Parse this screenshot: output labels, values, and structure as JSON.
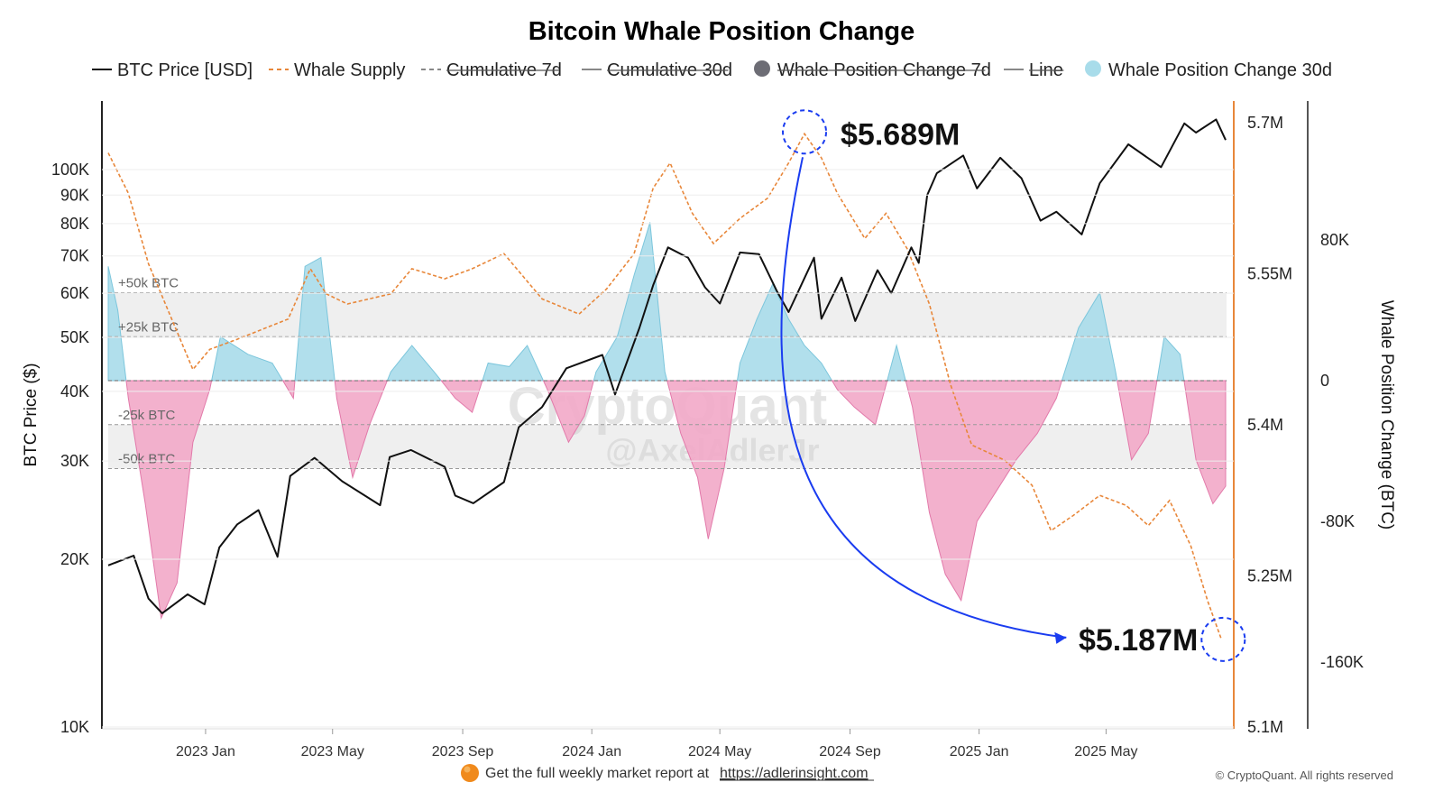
{
  "chart_data": {
    "type": "line",
    "title": "Bitcoin Whale Position Change",
    "legend": [
      {
        "name": "BTC Price [USD]",
        "style": "line",
        "color": "#111111",
        "active": true
      },
      {
        "name": "Whale Supply",
        "style": "dash",
        "color": "#e8873a",
        "active": true
      },
      {
        "name": "Cumulative 7d",
        "style": "dash",
        "color": "#888888",
        "active": false
      },
      {
        "name": "Cumulative 30d",
        "style": "line",
        "color": "#888888",
        "active": false
      },
      {
        "name": "Whale Position Change 7d",
        "style": "dot",
        "color": "#6d6d75",
        "active": false
      },
      {
        "name": "Line",
        "style": "line",
        "color": "#888888",
        "active": false
      },
      {
        "name": "Whale Position Change 30d",
        "style": "dot",
        "color": "#a8dcea",
        "active": true
      }
    ],
    "x_ticks": [
      "2023 Jan",
      "2023 May",
      "2023 Sep",
      "2024 Jan",
      "2024 May",
      "2024 Sep",
      "2025 Jan",
      "2025 May"
    ],
    "y_left": {
      "label": "BTC Price ($)",
      "scale": "log",
      "ticks": [
        "100K",
        "90K",
        "80K",
        "70K",
        "60K",
        "50K",
        "40K",
        "30K",
        "20K",
        "10K"
      ],
      "tick_values": [
        100000,
        90000,
        80000,
        70000,
        60000,
        50000,
        40000,
        30000,
        20000,
        10000
      ]
    },
    "y_right_outer": {
      "label": "Whale Position Change (BTC)",
      "ticks": [
        "80K",
        "0",
        "-80K",
        "-160K"
      ],
      "tick_values": [
        80000,
        0,
        -80000,
        -160000
      ]
    },
    "y_right_inner": {
      "ticks": [
        "5.7M",
        "5.55M",
        "5.4M",
        "5.25M",
        "5.1M"
      ],
      "tick_values": [
        5700000,
        5550000,
        5400000,
        5250000,
        5100000
      ]
    },
    "bands": [
      {
        "label": "+50k BTC",
        "value": 50000
      },
      {
        "label": "+25k BTC",
        "value": 25000
      },
      {
        "label": "-25k BTC",
        "value": -25000
      },
      {
        "label": "-50k BTC",
        "value": -50000
      }
    ],
    "annotations": [
      {
        "text": "$5.689M",
        "date": "2024-07-20",
        "value": 5689000
      },
      {
        "text": "$5.187M",
        "date": "2025-08-18",
        "value": 5187000
      }
    ],
    "series": [
      {
        "name": "BTC Price [USD]",
        "axis": "left",
        "points": [
          [
            "2022-10-01",
            19500
          ],
          [
            "2022-10-25",
            20300
          ],
          [
            "2022-11-08",
            17000
          ],
          [
            "2022-11-21",
            16000
          ],
          [
            "2022-12-15",
            17300
          ],
          [
            "2022-12-31",
            16600
          ],
          [
            "2023-01-14",
            21000
          ],
          [
            "2023-01-31",
            23100
          ],
          [
            "2023-02-20",
            24500
          ],
          [
            "2023-03-10",
            20200
          ],
          [
            "2023-03-22",
            28200
          ],
          [
            "2023-04-14",
            30400
          ],
          [
            "2023-05-10",
            27600
          ],
          [
            "2023-06-15",
            25000
          ],
          [
            "2023-06-24",
            30500
          ],
          [
            "2023-07-14",
            31400
          ],
          [
            "2023-08-15",
            29300
          ],
          [
            "2023-08-25",
            26000
          ],
          [
            "2023-09-11",
            25200
          ],
          [
            "2023-10-10",
            27500
          ],
          [
            "2023-10-24",
            34500
          ],
          [
            "2023-11-15",
            37500
          ],
          [
            "2023-12-08",
            44000
          ],
          [
            "2024-01-11",
            46500
          ],
          [
            "2024-01-23",
            39500
          ],
          [
            "2024-02-15",
            52000
          ],
          [
            "2024-02-28",
            62000
          ],
          [
            "2024-03-13",
            72500
          ],
          [
            "2024-04-01",
            69500
          ],
          [
            "2024-04-17",
            61500
          ],
          [
            "2024-05-01",
            57500
          ],
          [
            "2024-05-20",
            71000
          ],
          [
            "2024-06-07",
            70500
          ],
          [
            "2024-06-24",
            60500
          ],
          [
            "2024-07-05",
            55500
          ],
          [
            "2024-07-29",
            69500
          ],
          [
            "2024-08-05",
            54000
          ],
          [
            "2024-08-24",
            64000
          ],
          [
            "2024-09-06",
            53500
          ],
          [
            "2024-09-27",
            66000
          ],
          [
            "2024-10-10",
            60000
          ],
          [
            "2024-10-29",
            72500
          ],
          [
            "2024-11-05",
            68000
          ],
          [
            "2024-11-13",
            90000
          ],
          [
            "2024-11-22",
            98500
          ],
          [
            "2024-12-17",
            106000
          ],
          [
            "2024-12-30",
            92500
          ],
          [
            "2025-01-21",
            105000
          ],
          [
            "2025-02-10",
            96500
          ],
          [
            "2025-02-28",
            81000
          ],
          [
            "2025-03-15",
            84000
          ],
          [
            "2025-04-08",
            76500
          ],
          [
            "2025-04-25",
            94500
          ],
          [
            "2025-05-22",
            111000
          ],
          [
            "2025-06-22",
            101000
          ],
          [
            "2025-07-14",
            121000
          ],
          [
            "2025-07-25",
            116500
          ],
          [
            "2025-08-13",
            123000
          ],
          [
            "2025-08-22",
            113000
          ]
        ]
      },
      {
        "name": "Whale Supply",
        "axis": "right_inner",
        "points": [
          [
            "2022-10-01",
            5670000
          ],
          [
            "2022-10-20",
            5630000
          ],
          [
            "2022-11-08",
            5560000
          ],
          [
            "2022-11-30",
            5505000
          ],
          [
            "2022-12-20",
            5455000
          ],
          [
            "2023-01-05",
            5475000
          ],
          [
            "2023-01-31",
            5485000
          ],
          [
            "2023-03-20",
            5505000
          ],
          [
            "2023-04-10",
            5555000
          ],
          [
            "2023-04-25",
            5530000
          ],
          [
            "2023-05-15",
            5520000
          ],
          [
            "2023-06-25",
            5530000
          ],
          [
            "2023-07-15",
            5555000
          ],
          [
            "2023-08-15",
            5545000
          ],
          [
            "2023-09-10",
            5555000
          ],
          [
            "2023-10-10",
            5570000
          ],
          [
            "2023-11-15",
            5525000
          ],
          [
            "2023-12-20",
            5510000
          ],
          [
            "2024-01-15",
            5535000
          ],
          [
            "2024-02-10",
            5570000
          ],
          [
            "2024-02-28",
            5635000
          ],
          [
            "2024-03-15",
            5660000
          ],
          [
            "2024-04-05",
            5610000
          ],
          [
            "2024-04-25",
            5580000
          ],
          [
            "2024-05-20",
            5605000
          ],
          [
            "2024-06-15",
            5625000
          ],
          [
            "2024-07-05",
            5660000
          ],
          [
            "2024-07-20",
            5689000
          ],
          [
            "2024-08-05",
            5665000
          ],
          [
            "2024-08-20",
            5630000
          ],
          [
            "2024-09-15",
            5585000
          ],
          [
            "2024-10-05",
            5610000
          ],
          [
            "2024-10-25",
            5575000
          ],
          [
            "2024-11-15",
            5520000
          ],
          [
            "2024-12-05",
            5440000
          ],
          [
            "2024-12-25",
            5380000
          ],
          [
            "2025-01-25",
            5365000
          ],
          [
            "2025-02-20",
            5340000
          ],
          [
            "2025-03-10",
            5295000
          ],
          [
            "2025-03-31",
            5310000
          ],
          [
            "2025-04-25",
            5330000
          ],
          [
            "2025-05-20",
            5320000
          ],
          [
            "2025-06-10",
            5300000
          ],
          [
            "2025-06-30",
            5325000
          ],
          [
            "2025-07-20",
            5280000
          ],
          [
            "2025-08-05",
            5225000
          ],
          [
            "2025-08-18",
            5187000
          ]
        ]
      },
      {
        "name": "Whale Position Change 30d",
        "axis": "right_outer",
        "points": [
          [
            "2022-10-01",
            65000
          ],
          [
            "2022-10-10",
            40000
          ],
          [
            "2022-10-20",
            -10000
          ],
          [
            "2022-11-05",
            -70000
          ],
          [
            "2022-11-20",
            -135000
          ],
          [
            "2022-12-05",
            -115000
          ],
          [
            "2022-12-20",
            -35000
          ],
          [
            "2023-01-05",
            -5000
          ],
          [
            "2023-01-15",
            25000
          ],
          [
            "2023-02-10",
            15000
          ],
          [
            "2023-03-05",
            10000
          ],
          [
            "2023-03-25",
            -10000
          ],
          [
            "2023-04-05",
            65000
          ],
          [
            "2023-04-20",
            70000
          ],
          [
            "2023-05-05",
            -10000
          ],
          [
            "2023-05-20",
            -55000
          ],
          [
            "2023-06-05",
            -25000
          ],
          [
            "2023-06-25",
            5000
          ],
          [
            "2023-07-15",
            20000
          ],
          [
            "2023-08-05",
            5000
          ],
          [
            "2023-08-25",
            -10000
          ],
          [
            "2023-09-10",
            -18000
          ],
          [
            "2023-09-25",
            10000
          ],
          [
            "2023-10-15",
            8000
          ],
          [
            "2023-11-01",
            20000
          ],
          [
            "2023-11-20",
            -5000
          ],
          [
            "2023-12-10",
            -35000
          ],
          [
            "2023-12-25",
            -20000
          ],
          [
            "2024-01-05",
            5000
          ],
          [
            "2024-01-25",
            25000
          ],
          [
            "2024-02-10",
            60000
          ],
          [
            "2024-02-25",
            90000
          ],
          [
            "2024-03-10",
            5000
          ],
          [
            "2024-03-25",
            -30000
          ],
          [
            "2024-04-10",
            -55000
          ],
          [
            "2024-04-20",
            -90000
          ],
          [
            "2024-05-05",
            -50000
          ],
          [
            "2024-05-20",
            10000
          ],
          [
            "2024-06-05",
            35000
          ],
          [
            "2024-06-20",
            55000
          ],
          [
            "2024-07-05",
            35000
          ],
          [
            "2024-07-20",
            20000
          ],
          [
            "2024-08-05",
            10000
          ],
          [
            "2024-08-20",
            -5000
          ],
          [
            "2024-09-05",
            -15000
          ],
          [
            "2024-09-25",
            -25000
          ],
          [
            "2024-10-15",
            20000
          ],
          [
            "2024-10-30",
            -15000
          ],
          [
            "2024-11-15",
            -75000
          ],
          [
            "2024-11-30",
            -110000
          ],
          [
            "2024-12-15",
            -125000
          ],
          [
            "2024-12-30",
            -80000
          ],
          [
            "2025-01-15",
            -65000
          ],
          [
            "2025-02-05",
            -45000
          ],
          [
            "2025-02-25",
            -30000
          ],
          [
            "2025-03-15",
            -10000
          ],
          [
            "2025-04-05",
            30000
          ],
          [
            "2025-04-25",
            50000
          ],
          [
            "2025-05-10",
            5000
          ],
          [
            "2025-05-25",
            -45000
          ],
          [
            "2025-06-10",
            -30000
          ],
          [
            "2025-06-25",
            25000
          ],
          [
            "2025-07-10",
            15000
          ],
          [
            "2025-07-25",
            -45000
          ],
          [
            "2025-08-10",
            -70000
          ],
          [
            "2025-08-22",
            -60000
          ]
        ]
      }
    ],
    "watermark": "CryptoQuant",
    "watermark_handle": "@AxelAdlerJr"
  },
  "footer": {
    "text": "Get the full weekly market report at",
    "link": "https://adlerinsight.com",
    "copyright": "© CryptoQuant. All rights reserved"
  }
}
